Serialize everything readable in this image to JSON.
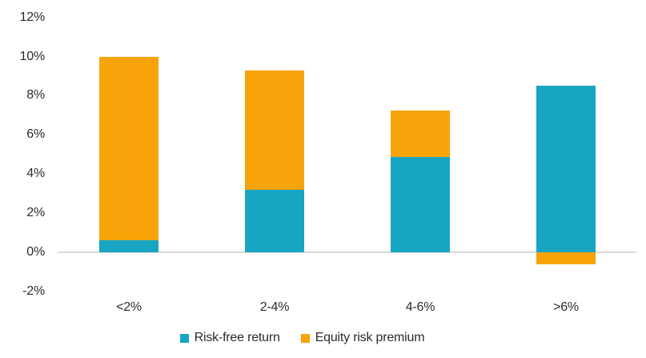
{
  "chart_data": {
    "type": "bar",
    "stacked": true,
    "title": "",
    "xlabel": "",
    "ylabel": "",
    "categories": [
      "<2%",
      "2-4%",
      "4-6%",
      ">6%"
    ],
    "series": [
      {
        "name": "Risk-free return",
        "color": "#17A5C2",
        "values": [
          0.6,
          3.2,
          4.85,
          8.5
        ]
      },
      {
        "name": "Equity risk premium",
        "color": "#F7A30A",
        "values": [
          9.4,
          6.1,
          2.4,
          -0.6
        ]
      }
    ],
    "totals": [
      10.0,
      9.3,
      7.25,
      7.9
    ],
    "ylim": [
      -2,
      12
    ],
    "yticks": [
      12,
      10,
      8,
      6,
      4,
      2,
      0,
      -2
    ],
    "ytick_labels": [
      "12%",
      "10%",
      "8%",
      "6%",
      "4%",
      "2%",
      "0%",
      "-2%"
    ],
    "grid": false,
    "legend_position": "bottom-center",
    "colors": {
      "risk_free": "#17A5C2",
      "equity_premium": "#F7A30A",
      "axis_line": "#D9D9D9",
      "text": "#2B2B2B",
      "background": "#FFFFFF"
    }
  }
}
